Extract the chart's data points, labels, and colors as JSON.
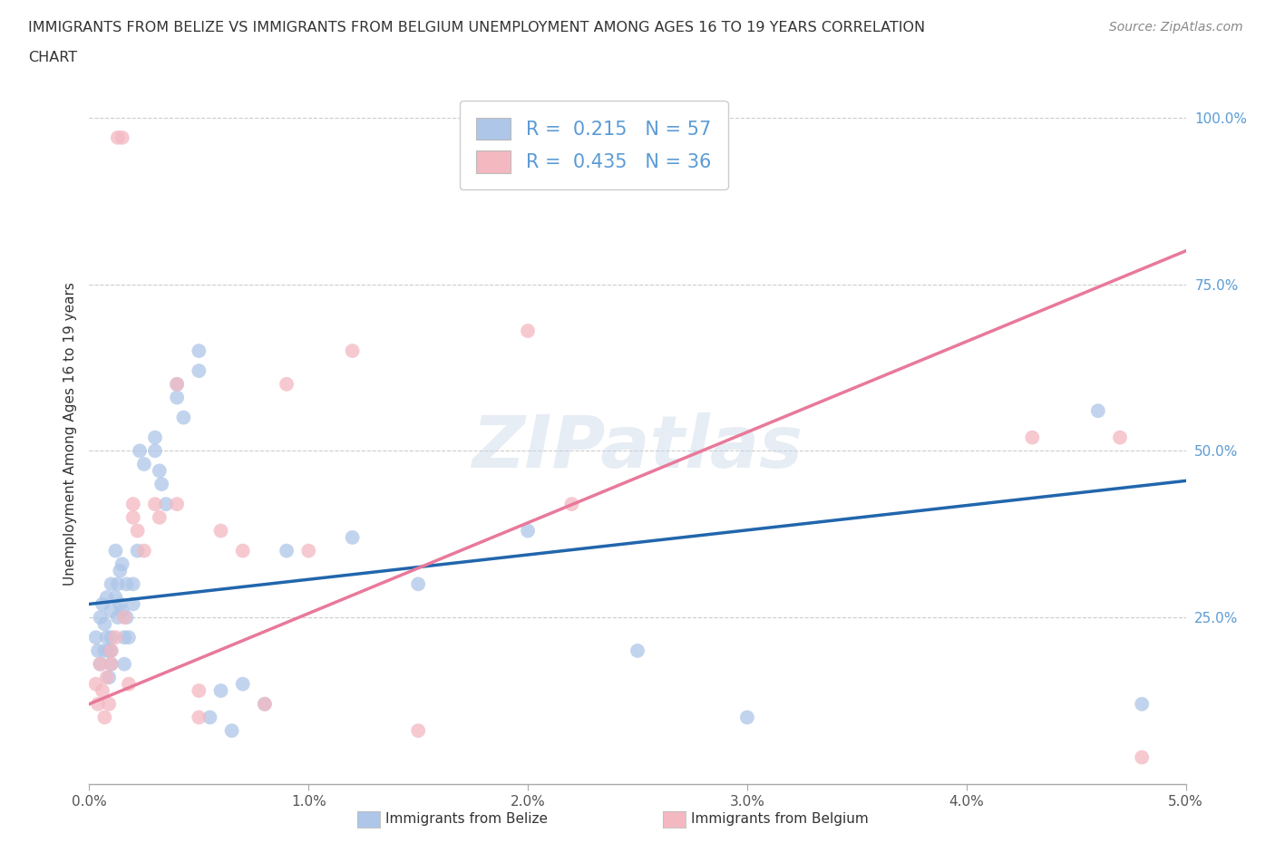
{
  "title_line1": "IMMIGRANTS FROM BELIZE VS IMMIGRANTS FROM BELGIUM UNEMPLOYMENT AMONG AGES 16 TO 19 YEARS CORRELATION",
  "title_line2": "CHART",
  "source": "Source: ZipAtlas.com",
  "ylabel": "Unemployment Among Ages 16 to 19 years",
  "xlim": [
    0.0,
    0.05
  ],
  "ylim": [
    0.0,
    1.05
  ],
  "xticks": [
    0.0,
    0.01,
    0.02,
    0.03,
    0.04,
    0.05
  ],
  "yticks": [
    0.0,
    0.25,
    0.5,
    0.75,
    1.0
  ],
  "xtick_labels": [
    "0.0%",
    "1.0%",
    "2.0%",
    "3.0%",
    "4.0%",
    "5.0%"
  ],
  "ytick_labels": [
    "",
    "25.0%",
    "50.0%",
    "75.0%",
    "100.0%"
  ],
  "belize_color": "#aec6e8",
  "belgium_color": "#f4b8c1",
  "belize_line_color": "#2166ac",
  "belgium_line_color": "#e8799a",
  "belize_R": 0.215,
  "belize_N": 57,
  "belgium_R": 0.435,
  "belgium_N": 36,
  "legend_label_belize": "Immigrants from Belize",
  "legend_label_belgium": "Immigrants from Belgium",
  "watermark": "ZIPatlas",
  "belize_line_x0": 0.0,
  "belize_line_y0": 0.27,
  "belize_line_x1": 0.05,
  "belize_line_y1": 0.455,
  "belgium_line_x0": 0.0,
  "belgium_line_y0": 0.12,
  "belgium_line_x1": 0.05,
  "belgium_line_y1": 0.8,
  "belize_x": [
    0.0003,
    0.0004,
    0.0005,
    0.0005,
    0.0006,
    0.0007,
    0.0007,
    0.0008,
    0.0008,
    0.0009,
    0.0009,
    0.001,
    0.001,
    0.001,
    0.001,
    0.001,
    0.0012,
    0.0012,
    0.0013,
    0.0013,
    0.0014,
    0.0014,
    0.0015,
    0.0015,
    0.0016,
    0.0016,
    0.0017,
    0.0017,
    0.0018,
    0.002,
    0.002,
    0.0022,
    0.0023,
    0.0025,
    0.003,
    0.003,
    0.0032,
    0.0033,
    0.0035,
    0.004,
    0.004,
    0.0043,
    0.005,
    0.005,
    0.0055,
    0.006,
    0.0065,
    0.007,
    0.008,
    0.009,
    0.012,
    0.015,
    0.02,
    0.025,
    0.03,
    0.046,
    0.048
  ],
  "belize_y": [
    0.22,
    0.2,
    0.25,
    0.18,
    0.27,
    0.24,
    0.2,
    0.22,
    0.28,
    0.2,
    0.16,
    0.3,
    0.26,
    0.22,
    0.2,
    0.18,
    0.35,
    0.28,
    0.3,
    0.25,
    0.32,
    0.27,
    0.33,
    0.26,
    0.22,
    0.18,
    0.3,
    0.25,
    0.22,
    0.3,
    0.27,
    0.35,
    0.5,
    0.48,
    0.52,
    0.5,
    0.47,
    0.45,
    0.42,
    0.6,
    0.58,
    0.55,
    0.65,
    0.62,
    0.1,
    0.14,
    0.08,
    0.15,
    0.12,
    0.35,
    0.37,
    0.3,
    0.38,
    0.2,
    0.1,
    0.56,
    0.12
  ],
  "belgium_x": [
    0.0003,
    0.0004,
    0.0005,
    0.0006,
    0.0007,
    0.0008,
    0.0009,
    0.001,
    0.001,
    0.0012,
    0.0013,
    0.0015,
    0.0016,
    0.0018,
    0.002,
    0.002,
    0.0022,
    0.0025,
    0.003,
    0.0032,
    0.004,
    0.004,
    0.005,
    0.005,
    0.006,
    0.007,
    0.008,
    0.009,
    0.01,
    0.012,
    0.015,
    0.02,
    0.022,
    0.043,
    0.047,
    0.048
  ],
  "belgium_y": [
    0.15,
    0.12,
    0.18,
    0.14,
    0.1,
    0.16,
    0.12,
    0.2,
    0.18,
    0.22,
    0.97,
    0.97,
    0.25,
    0.15,
    0.42,
    0.4,
    0.38,
    0.35,
    0.42,
    0.4,
    0.42,
    0.6,
    0.14,
    0.1,
    0.38,
    0.35,
    0.12,
    0.6,
    0.35,
    0.65,
    0.08,
    0.68,
    0.42,
    0.52,
    0.52,
    0.04
  ]
}
